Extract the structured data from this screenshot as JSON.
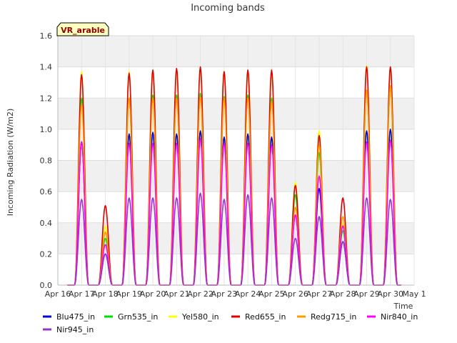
{
  "chart_data": {
    "type": "line",
    "title": "Incoming bands",
    "xlabel": "Time",
    "ylabel": "Incoming Radiation (W/m2)",
    "site_label": "VR_arable",
    "x_ticks": [
      "Apr 16",
      "Apr 17",
      "Apr 18",
      "Apr 19",
      "Apr 20",
      "Apr 21",
      "Apr 22",
      "Apr 23",
      "Apr 24",
      "Apr 25",
      "Apr 26",
      "Apr 27",
      "Apr 28",
      "Apr 29",
      "Apr 30",
      "May 1"
    ],
    "y_ticks": [
      "0.0",
      "0.2",
      "0.4",
      "0.6",
      "0.8",
      "1.0",
      "1.2",
      "1.4",
      "1.6"
    ],
    "xlim_days": [
      16,
      31
    ],
    "ylim": [
      0,
      1.6
    ],
    "grid": true,
    "legend_position": "bottom",
    "day_peak_time_days": [
      17.0,
      18.0,
      19.0,
      20.0,
      21.0,
      22.0,
      23.0,
      24.0,
      25.0,
      26.0,
      27.0,
      28.0,
      29.0,
      30.0
    ],
    "series": [
      {
        "name": "Blu475_in",
        "color": "#0000cc",
        "daily_peaks": [
          0.92,
          0.2,
          0.97,
          0.98,
          0.97,
          0.99,
          0.95,
          0.97,
          0.95,
          0.45,
          0.62,
          0.28,
          0.99,
          1.0
        ]
      },
      {
        "name": "Grn535_in",
        "color": "#00dd00",
        "daily_peaks": [
          1.2,
          0.3,
          1.2,
          1.22,
          1.22,
          1.23,
          1.21,
          1.22,
          1.2,
          0.58,
          0.85,
          0.35,
          1.25,
          1.27
        ]
      },
      {
        "name": "Yel580_in",
        "color": "#ffff00",
        "daily_peaks": [
          1.37,
          0.38,
          1.37,
          1.38,
          1.38,
          1.39,
          1.37,
          1.37,
          1.36,
          0.66,
          0.99,
          0.39,
          1.41,
          1.39
        ]
      },
      {
        "name": "Red655_in",
        "color": "#dd0000",
        "daily_peaks": [
          1.35,
          0.51,
          1.36,
          1.38,
          1.39,
          1.4,
          1.37,
          1.38,
          1.38,
          0.64,
          0.96,
          0.56,
          1.4,
          1.4
        ]
      },
      {
        "name": "Redg715_in",
        "color": "#ff9900",
        "daily_peaks": [
          1.16,
          0.34,
          1.2,
          1.2,
          1.2,
          1.21,
          1.2,
          1.2,
          1.18,
          0.5,
          0.9,
          0.44,
          1.25,
          1.28
        ]
      },
      {
        "name": "Nir840_in",
        "color": "#ff00ff",
        "daily_peaks": [
          0.92,
          0.26,
          0.91,
          0.91,
          0.91,
          0.94,
          0.91,
          0.91,
          0.9,
          0.45,
          0.7,
          0.38,
          0.92,
          0.93
        ]
      },
      {
        "name": "Nir945_in",
        "color": "#9933cc",
        "daily_peaks": [
          0.55,
          0.2,
          0.56,
          0.56,
          0.56,
          0.59,
          0.55,
          0.58,
          0.56,
          0.3,
          0.44,
          0.28,
          0.56,
          0.55
        ]
      }
    ]
  }
}
